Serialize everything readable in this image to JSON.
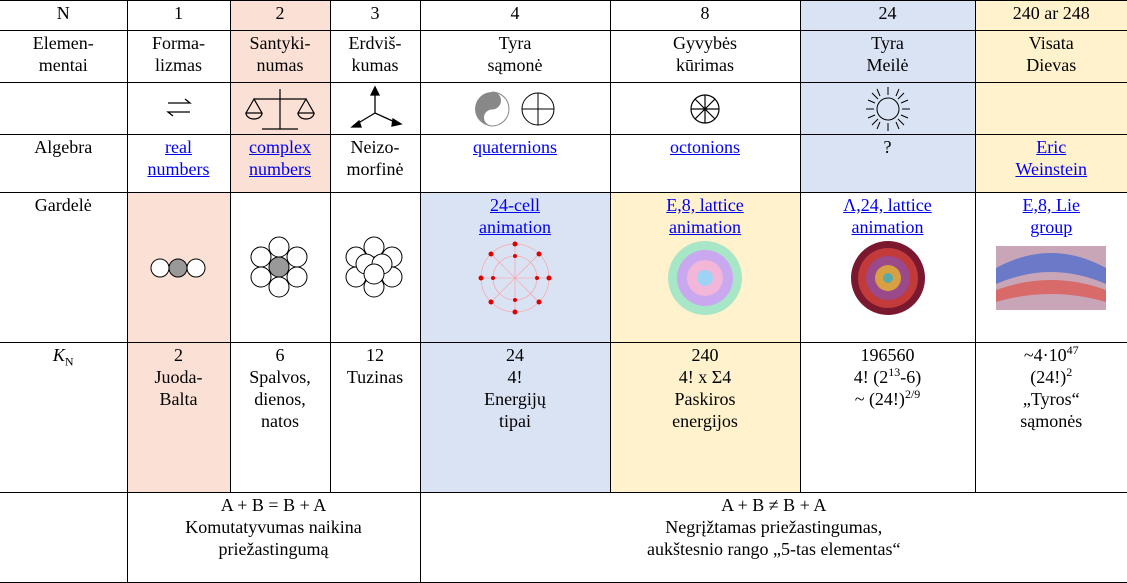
{
  "header": [
    "N",
    "1",
    "2",
    "3",
    "4",
    "8",
    "24",
    "240 ar 248"
  ],
  "elementai": {
    "label": [
      "Elemen-",
      "mentai"
    ],
    "cells": [
      [
        "Forma-",
        "lizmas"
      ],
      [
        "Santyki-",
        "numas"
      ],
      [
        "Erdviš-",
        "kumas"
      ],
      [
        "Tyra",
        "sąmonė"
      ],
      [
        "Gyvybės",
        "kūrimas"
      ],
      [
        "Tyra",
        "Meilė"
      ],
      [
        "Visata",
        "Dievas"
      ]
    ]
  },
  "algebra": {
    "label": "Algebra",
    "cells": [
      [
        "real",
        "numbers"
      ],
      [
        "complex",
        "numbers"
      ],
      [
        "Neizo-",
        "morfinė"
      ],
      [
        "quaternions"
      ],
      [
        "octonions"
      ],
      [
        "?"
      ],
      [
        "Eric",
        "Weinstein"
      ]
    ]
  },
  "gardele": {
    "label": "Gardelė",
    "links": [
      [
        [
          "24-cell"
        ],
        [
          "animation"
        ]
      ],
      [
        [
          [
            "E",
            "8",
            " lattice"
          ]
        ],
        [
          "animation"
        ]
      ],
      [
        [
          [
            "Λ",
            "24",
            " lattice"
          ]
        ],
        [
          "animation"
        ]
      ],
      [
        [
          [
            "E",
            "8",
            " Lie"
          ]
        ],
        [
          "group"
        ]
      ]
    ]
  },
  "kn": {
    "label": [
      "K",
      "N"
    ],
    "cells": [
      [
        "2",
        "Juoda-",
        "Balta"
      ],
      [
        "6",
        "Spalvos,",
        "dienos,",
        "natos"
      ],
      [
        "12",
        "Tuzinas"
      ],
      [
        "24",
        "4!",
        "Energijų",
        "tipai"
      ],
      [
        "240",
        "4! x Σ4",
        "Paskiros",
        "energijos"
      ],
      [
        "196560",
        [
          "4! (2",
          "13",
          "-6)"
        ],
        [
          "~ (24!)",
          "2/9"
        ]
      ],
      [
        [
          "~4·10",
          "47"
        ],
        [
          "(24!)",
          "2"
        ],
        "„Tyros“",
        "sąmonės"
      ]
    ]
  },
  "bottom": {
    "left": [
      "A + B = B + A",
      "Komutatyvumas naikina",
      "priežastingumą"
    ],
    "right": [
      "A + B ≠ B + A",
      "Negrįžtamas priežastingumas,",
      "aukštesnio rango „5-tas elementas“"
    ]
  }
}
